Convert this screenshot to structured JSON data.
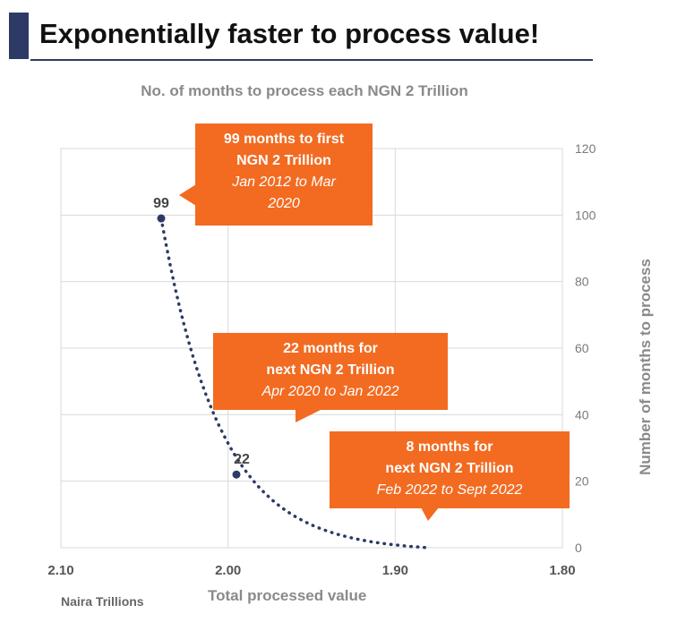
{
  "header": {
    "title": "Exponentially faster to process value!"
  },
  "chart_data": {
    "type": "scatter",
    "title": "No. of months to process each NGN 2 Trillion",
    "xlabel": "Total processed value",
    "ylabel": "Number of months to process",
    "x_unit_label": "Naira Trillions",
    "xlim": [
      2.1,
      1.8
    ],
    "ylim": [
      0,
      120
    ],
    "x_ticks": [
      "2.10",
      "2.00",
      "1.90",
      "1.80"
    ],
    "y_ticks": [
      "0",
      "20",
      "40",
      "60",
      "80",
      "100",
      "120"
    ],
    "grid": true,
    "series": [
      {
        "name": "Months to process",
        "points": [
          {
            "x": 2.04,
            "y": 99,
            "label": "99"
          },
          {
            "x": 1.995,
            "y": 22,
            "label": "22"
          }
        ]
      }
    ],
    "trend": {
      "style": "dotted",
      "from": [
        2.04,
        99
      ],
      "to": [
        1.88,
        0
      ]
    },
    "annotations": [
      {
        "line1": "99 months to first",
        "line2": "NGN 2 Trillion",
        "line3": "Jan 2012 to Mar",
        "line4": "2020"
      },
      {
        "line1": "22 months for",
        "line2": "next NGN 2 Trillion",
        "line3": "Apr 2020 to Jan 2022"
      },
      {
        "line1": "8 months for",
        "line2": "next NGN 2 Trillion",
        "line3": "Feb 2022 to Sept 2022"
      }
    ],
    "colors": {
      "callout": "#f26b21",
      "point": "#2e3a66",
      "grid": "#d9d9d9"
    }
  }
}
